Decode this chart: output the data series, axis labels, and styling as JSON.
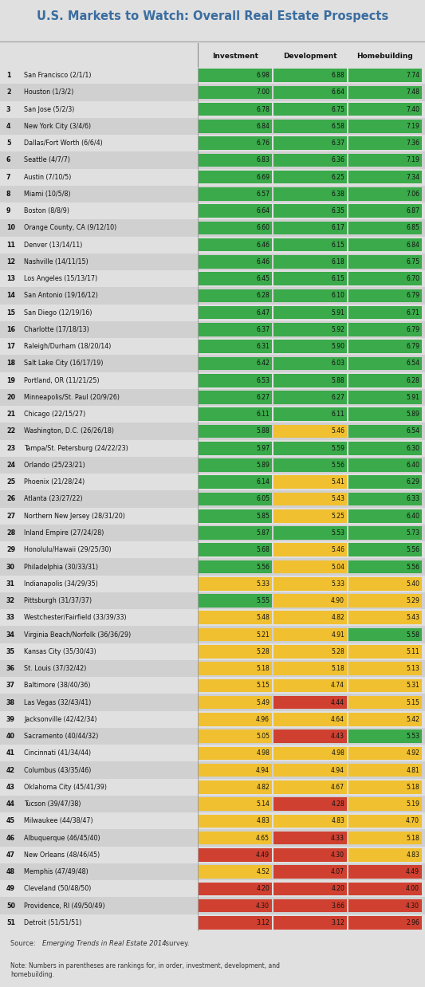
{
  "title": "U.S. Markets to Watch: Overall Real Estate Prospects",
  "col_headers": [
    "Investment",
    "Development",
    "Homebuilding"
  ],
  "ranks": [
    1,
    2,
    3,
    4,
    5,
    6,
    7,
    8,
    9,
    10,
    11,
    12,
    13,
    14,
    15,
    16,
    17,
    18,
    19,
    20,
    21,
    22,
    23,
    24,
    25,
    26,
    27,
    28,
    29,
    30,
    31,
    32,
    33,
    34,
    35,
    36,
    37,
    38,
    39,
    40,
    41,
    42,
    43,
    44,
    45,
    46,
    47,
    48,
    49,
    50,
    51
  ],
  "city_names": [
    "San Francisco (2/1/1)",
    "Houston (1/3/2)",
    "San Jose (5/2/3)",
    "New York City (3/4/6)",
    "Dallas/Fort Worth (6/6/4)",
    "Seattle (4/7/7)",
    "Austin (7/10/5)",
    "Miami (10/5/8)",
    "Boston (8/8/9)",
    "Orange County, CA (9/12/10)",
    "Denver (13/14/11)",
    "Nashville (14/11/15)",
    "Los Angeles (15/13/17)",
    "San Antonio (19/16/12)",
    "San Diego (12/19/16)",
    "Charlotte (17/18/13)",
    "Raleigh/Durham (18/20/14)",
    "Salt Lake City (16/17/19)",
    "Portland, OR (11/21/25)",
    "Minneapolis/St. Paul (20/9/26)",
    "Chicago (22/15/27)",
    "Washington, D.C. (26/26/18)",
    "Tampa/St. Petersburg (24/22/23)",
    "Orlando (25/23/21)",
    "Phoenix (21/28/24)",
    "Atlanta (23/27/22)",
    "Northern New Jersey (28/31/20)",
    "Inland Empire (27/24/28)",
    "Honolulu/Hawaii (29/25/30)",
    "Philadelphia (30/33/31)",
    "Indianapolis (34/29/35)",
    "Pittsburgh (31/37/37)",
    "Westchester/Fairfield (33/39/33)",
    "Virginia Beach/Norfolk (36/36/29)",
    "Kansas City (35/30/43)",
    "St. Louis (37/32/42)",
    "Baltimore (38/40/36)",
    "Las Vegas (32/43/41)",
    "Jacksonville (42/42/34)",
    "Sacramento (40/44/32)",
    "Cincinnati (41/34/44)",
    "Columbus (43/35/46)",
    "Oklahoma City (45/41/39)",
    "Tucson (39/47/38)",
    "Milwaukee (44/38/47)",
    "Albuquerque (46/45/40)",
    "New Orleans (48/46/45)",
    "Memphis (47/49/48)",
    "Cleveland (50/48/50)",
    "Providence, RI (49/50/49)",
    "Detroit (51/51/51)"
  ],
  "investment": [
    6.98,
    7.0,
    6.78,
    6.84,
    6.76,
    6.83,
    6.69,
    6.57,
    6.64,
    6.6,
    6.46,
    6.46,
    6.45,
    6.28,
    6.47,
    6.37,
    6.31,
    6.42,
    6.53,
    6.27,
    6.11,
    5.88,
    5.97,
    5.89,
    6.14,
    6.05,
    5.85,
    5.87,
    5.68,
    5.56,
    5.33,
    5.55,
    5.48,
    5.21,
    5.28,
    5.18,
    5.15,
    5.49,
    4.96,
    5.05,
    4.98,
    4.94,
    4.82,
    5.14,
    4.83,
    4.65,
    4.49,
    4.52,
    4.2,
    4.3,
    3.12
  ],
  "development": [
    6.88,
    6.64,
    6.75,
    6.58,
    6.37,
    6.36,
    6.25,
    6.38,
    6.35,
    6.17,
    6.15,
    6.18,
    6.15,
    6.1,
    5.91,
    5.92,
    5.9,
    6.03,
    5.88,
    6.27,
    6.11,
    5.46,
    5.59,
    5.56,
    5.41,
    5.43,
    5.25,
    5.53,
    5.46,
    5.04,
    5.33,
    4.9,
    4.82,
    4.91,
    5.28,
    5.18,
    4.74,
    4.44,
    4.64,
    4.43,
    4.98,
    4.94,
    4.67,
    4.28,
    4.83,
    4.33,
    4.3,
    4.07,
    4.2,
    3.66,
    3.12
  ],
  "homebuilding": [
    7.74,
    7.48,
    7.4,
    7.19,
    7.36,
    7.19,
    7.34,
    7.06,
    6.87,
    6.85,
    6.84,
    6.75,
    6.7,
    6.79,
    6.71,
    6.79,
    6.79,
    6.54,
    6.28,
    5.91,
    5.89,
    6.54,
    6.3,
    6.4,
    6.29,
    6.33,
    6.4,
    5.73,
    5.56,
    5.56,
    5.4,
    5.29,
    5.43,
    5.58,
    5.11,
    5.13,
    5.31,
    5.15,
    5.42,
    5.53,
    4.92,
    4.81,
    5.18,
    5.19,
    4.7,
    5.18,
    4.83,
    4.49,
    4.0,
    4.3,
    2.96
  ],
  "green": "#3aaa4a",
  "yellow": "#f0c030",
  "red": "#d04030",
  "bg_color": "#e0e0e0",
  "row_bg_alt": "#d0d0d0",
  "title_bg": "#ffffff",
  "source_text": "Source: ",
  "source_italic": "Emerging Trends in Real Estate 2014",
  "source_end": " survey.",
  "note_text": "Note: Numbers in parentheses are rankings for, in order, investment, development, and\nhomebuilding."
}
